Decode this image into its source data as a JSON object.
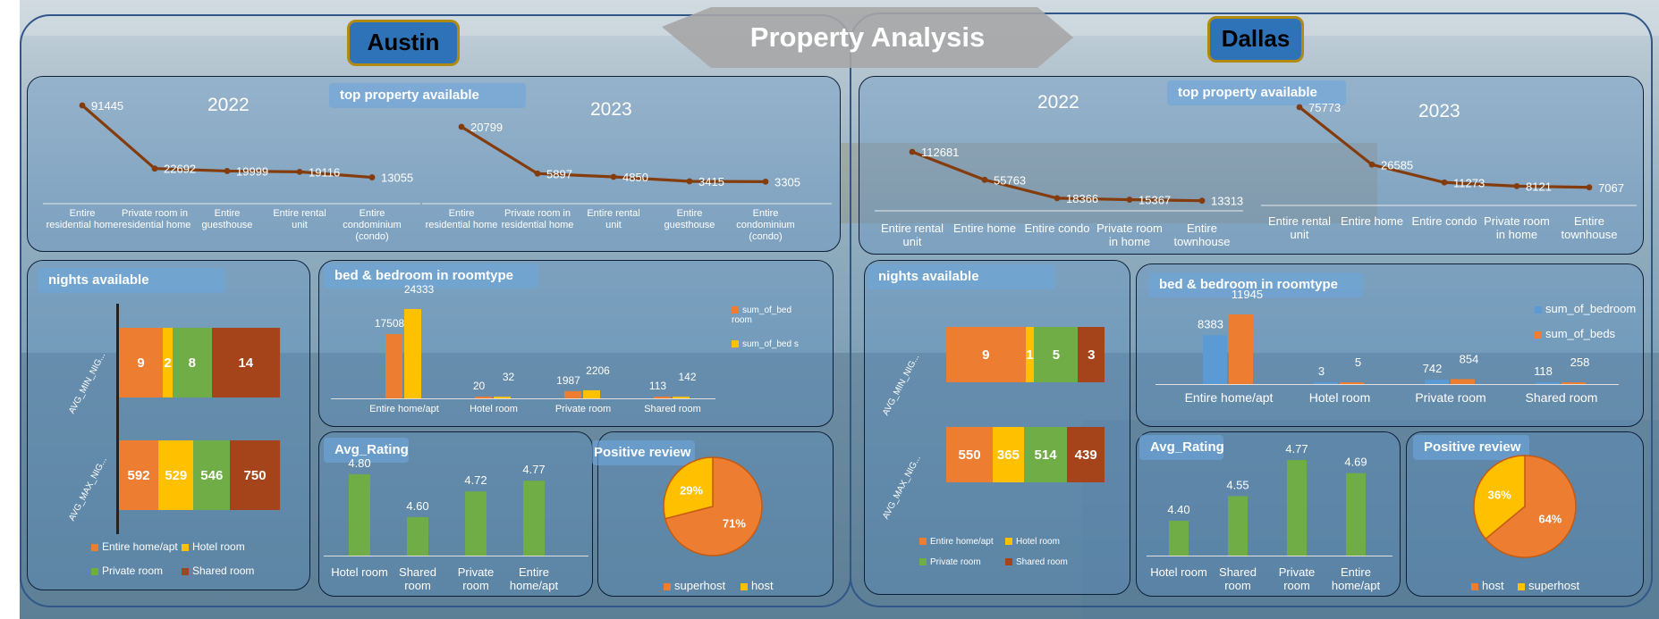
{
  "title": "Property Analysis",
  "colors": {
    "orange": "#ed7d31",
    "yellow": "#ffc000",
    "green": "#70ad47",
    "brown": "#a5441a",
    "blue": "#5b9bd5",
    "line": "#843c0c"
  },
  "austin": {
    "name": "Austin",
    "top_property": {
      "title": "top property available",
      "y2022": {
        "year": "2022",
        "labels": [
          "Entire residential home",
          "Private room in residential home",
          "Entire guesthouse",
          "Entire rental unit",
          "Entire condominium (condo)"
        ],
        "values": [
          91445,
          22692,
          19999,
          19116,
          13055
        ]
      },
      "y2023": {
        "year": "2023",
        "labels": [
          "Entire residential home",
          "Private room in residential home",
          "Entire rental unit",
          "Entire guesthouse",
          "Entire condominium (condo)"
        ],
        "values": [
          20799,
          5897,
          4850,
          3415,
          3305
        ]
      }
    },
    "nights": {
      "title": "nights available",
      "rows": [
        {
          "label": "AVG_MIN_NIG...",
          "values": [
            9,
            2,
            8,
            14
          ]
        },
        {
          "label": "AVG_MAX_NIG...",
          "values": [
            592,
            529,
            546,
            750
          ]
        }
      ],
      "legend": [
        "Entire home/apt",
        "Hotel room",
        "Private room",
        "Shared room"
      ]
    },
    "beds": {
      "title": "bed & bedroom in roomtype",
      "categories": [
        "Entire home/apt",
        "Hotel room",
        "Private room",
        "Shared room"
      ],
      "bedroom": [
        17508,
        20,
        1987,
        113
      ],
      "beds": [
        24333,
        32,
        2206,
        142
      ],
      "legend": [
        "sum_of_bed room",
        "sum_of_bed s"
      ]
    },
    "rating": {
      "title": "Avg_Rating",
      "categories": [
        "Hotel room",
        "Shared room",
        "Private room",
        "Entire home/apt"
      ],
      "values": [
        "4.80",
        "4.60",
        "4.72",
        "4.77"
      ]
    },
    "review": {
      "title": "Positive review",
      "slices": [
        {
          "label": "superhost",
          "pct": "71%",
          "value": 71
        },
        {
          "label": "host",
          "pct": "29%",
          "value": 29
        }
      ]
    }
  },
  "dallas": {
    "name": "Dallas",
    "top_property": {
      "title": "top property available",
      "y2022": {
        "year": "2022",
        "labels": [
          "Entire rental unit",
          "Entire home",
          "Entire condo",
          "Private room in home",
          "Entire townhouse"
        ],
        "values": [
          112681,
          55763,
          18366,
          15367,
          13313
        ]
      },
      "y2023": {
        "year": "2023",
        "labels": [
          "Entire rental unit",
          "Entire home",
          "Entire condo",
          "Private room in home",
          "Entire townhouse"
        ],
        "values": [
          75773,
          26585,
          11273,
          8121,
          7067
        ]
      }
    },
    "nights": {
      "title": "nights available",
      "rows": [
        {
          "label": "AVG_MIN_NIG...",
          "values": [
            9,
            1,
            5,
            3
          ]
        },
        {
          "label": "AVG_MAX_NIG...",
          "values": [
            550,
            365,
            514,
            439
          ]
        }
      ],
      "legend": [
        "Entire home/apt",
        "Hotel room",
        "Private room",
        "Shared room"
      ]
    },
    "beds": {
      "title": "bed & bedroom in roomtype",
      "categories": [
        "Entire home/apt",
        "Hotel room",
        "Private room",
        "Shared room"
      ],
      "bedroom": [
        8383,
        3,
        742,
        118
      ],
      "beds": [
        11945,
        5,
        854,
        258
      ],
      "legend": [
        "sum_of_bedroom",
        "sum_of_beds"
      ]
    },
    "rating": {
      "title": "Avg_Rating",
      "categories": [
        "Hotel room",
        "Shared room",
        "Private room",
        "Entire home/apt"
      ],
      "values": [
        "4.40",
        "4.55",
        "4.77",
        "4.69"
      ]
    },
    "review": {
      "title": "Positive review",
      "slices": [
        {
          "label": "host",
          "pct": "64%",
          "value": 64
        },
        {
          "label": "superhost",
          "pct": "36%",
          "value": 36
        }
      ]
    }
  }
}
